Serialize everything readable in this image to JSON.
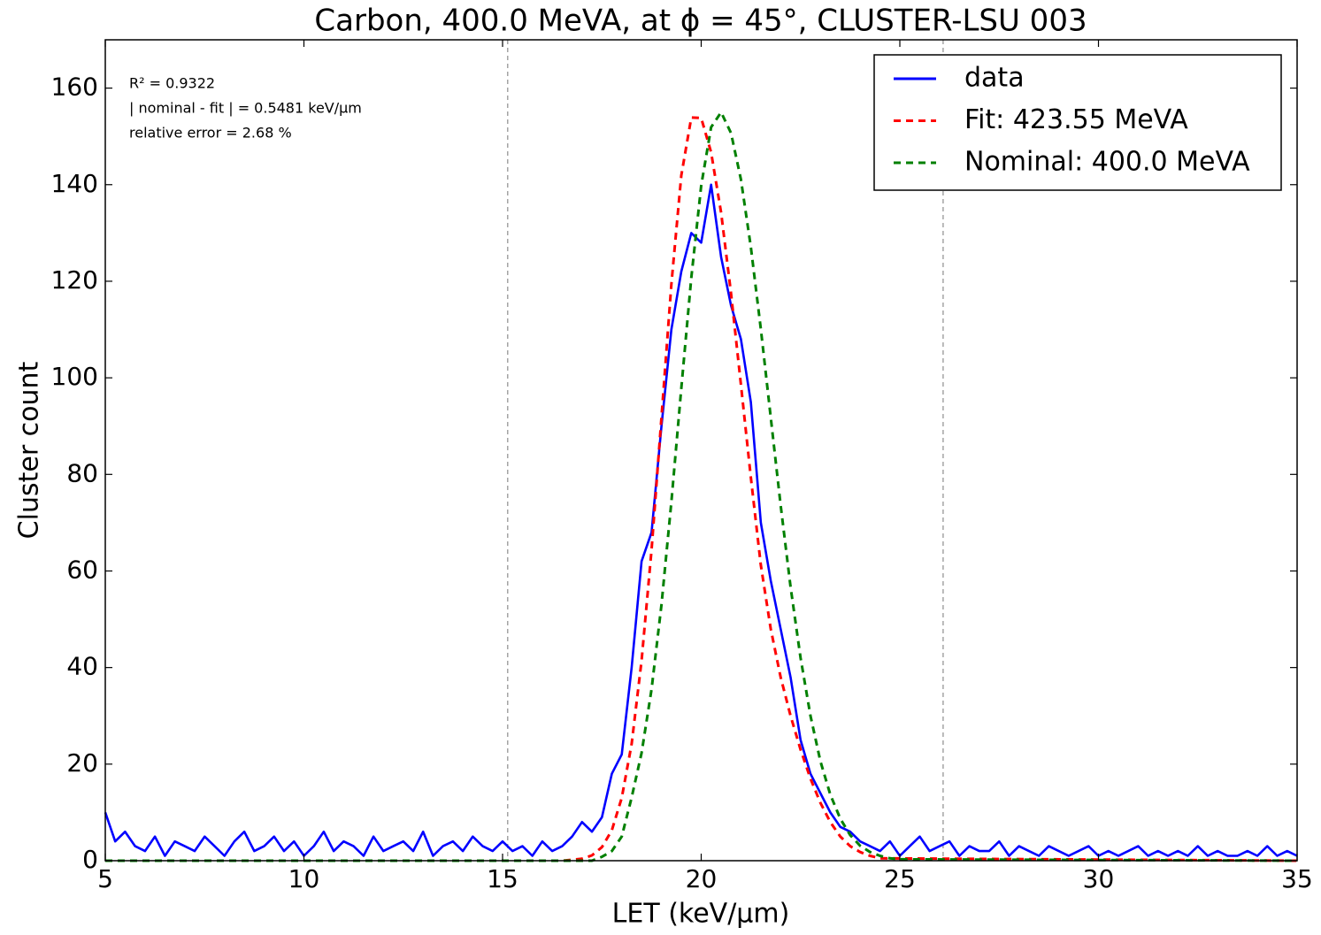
{
  "chart_data": {
    "type": "line",
    "title": "Carbon, 400.0 MeVA, at ϕ = 45°, CLUSTER-LSU 003",
    "x_label": "LET (keV/μm)",
    "y_label": "Cluster count",
    "annotations": [
      "R² = 0.9322",
      "| nominal - fit | = 0.5481 keV/μm",
      "relative error = 2.68 %"
    ],
    "xlim": [
      5,
      35
    ],
    "ylim": [
      0,
      170
    ],
    "xticks": [
      5,
      10,
      15,
      20,
      25,
      30,
      35
    ],
    "yticks": [
      0,
      20,
      40,
      60,
      80,
      100,
      120,
      140,
      160
    ],
    "vlines": [
      15.13,
      26.09
    ],
    "legend": "upper right",
    "series": [
      {
        "name": "data",
        "color": "#0000ff",
        "style": "solid",
        "x": [
          5,
          5.25,
          5.5,
          5.75,
          6,
          6.25,
          6.5,
          6.75,
          7,
          7.25,
          7.5,
          7.75,
          8,
          8.25,
          8.5,
          8.75,
          9,
          9.25,
          9.5,
          9.75,
          10,
          10.25,
          10.5,
          10.75,
          11,
          11.25,
          11.5,
          11.75,
          12,
          12.25,
          12.5,
          12.75,
          13,
          13.25,
          13.5,
          13.75,
          14,
          14.25,
          14.5,
          14.75,
          15,
          15.25,
          15.5,
          15.75,
          16,
          16.25,
          16.5,
          16.75,
          17,
          17.25,
          17.5,
          17.75,
          18,
          18.25,
          18.5,
          18.75,
          19,
          19.25,
          19.5,
          19.75,
          20,
          20.25,
          20.5,
          20.75,
          21,
          21.25,
          21.5,
          21.75,
          22,
          22.25,
          22.5,
          22.75,
          23,
          23.25,
          23.5,
          23.75,
          24,
          24.25,
          24.5,
          24.75,
          25,
          25.25,
          25.5,
          25.75,
          26,
          26.25,
          26.5,
          26.75,
          27,
          27.25,
          27.5,
          27.75,
          28,
          28.25,
          28.5,
          28.75,
          29,
          29.25,
          29.5,
          29.75,
          30,
          30.25,
          30.5,
          30.75,
          31,
          31.25,
          31.5,
          31.75,
          32,
          32.25,
          32.5,
          32.75,
          33,
          33.25,
          33.5,
          33.75,
          34,
          34.25,
          34.5,
          34.75,
          35
        ],
        "values": [
          10,
          4,
          6,
          3,
          2,
          5,
          1,
          4,
          3,
          2,
          5,
          3,
          1,
          4,
          6,
          2,
          3,
          5,
          2,
          4,
          1,
          3,
          6,
          2,
          4,
          3,
          1,
          5,
          2,
          3,
          4,
          2,
          6,
          1,
          3,
          4,
          2,
          5,
          3,
          2,
          4,
          2,
          3,
          1,
          4,
          2,
          3,
          5,
          8,
          6,
          9,
          18,
          22,
          40,
          62,
          68,
          90,
          110,
          122,
          130,
          128,
          140,
          125,
          115,
          108,
          95,
          70,
          58,
          48,
          38,
          25,
          18,
          14,
          10,
          7,
          6,
          4,
          3,
          2,
          4,
          1,
          3,
          5,
          2,
          3,
          4,
          1,
          3,
          2,
          2,
          4,
          1,
          3,
          2,
          1,
          3,
          2,
          1,
          2,
          3,
          1,
          2,
          1,
          2,
          3,
          1,
          2,
          1,
          2,
          1,
          3,
          1,
          2,
          1,
          1,
          2,
          1,
          3,
          1,
          2,
          1
        ]
      },
      {
        "name": "Fit: 423.55 MeVA",
        "color": "#ff0000",
        "style": "dashed",
        "x": [
          5,
          16.5,
          17,
          17.25,
          17.5,
          17.75,
          18,
          18.25,
          18.5,
          18.75,
          19,
          19.25,
          19.5,
          19.75,
          20,
          20.25,
          20.5,
          20.75,
          21,
          21.25,
          21.5,
          21.75,
          22,
          22.25,
          22.5,
          22.75,
          23,
          23.25,
          23.5,
          23.75,
          24,
          24.25,
          24.5,
          35
        ],
        "values": [
          0,
          0,
          0.4,
          1.1,
          2.8,
          6.3,
          13,
          24.2,
          41.4,
          64.4,
          91.8,
          119.4,
          141.9,
          153.9,
          153.8,
          146.7,
          134.2,
          117.5,
          98.6,
          79.4,
          61.2,
          48,
          38,
          30,
          23,
          17,
          12,
          8,
          5,
          3,
          1.8,
          1,
          0.5,
          0
        ]
      },
      {
        "name": "Nominal: 400.0 MeVA",
        "color": "#008000",
        "style": "dashed",
        "x": [
          5,
          17.25,
          17.5,
          17.75,
          18,
          18.25,
          18.5,
          18.75,
          19,
          19.25,
          19.5,
          19.75,
          20,
          20.25,
          20.5,
          20.75,
          21,
          21.25,
          21.5,
          21.75,
          22,
          22.25,
          22.5,
          22.75,
          23,
          23.25,
          23.5,
          23.75,
          24,
          24.25,
          24.5,
          24.75,
          25,
          35
        ],
        "values": [
          0,
          0,
          0.8,
          2,
          5,
          13.1,
          22.3,
          35.5,
          53,
          74.3,
          97.8,
          120.7,
          139.8,
          151.9,
          155,
          150.7,
          141.1,
          127.1,
          110.1,
          91.8,
          73.6,
          56.7,
          42,
          30,
          20.6,
          13.7,
          8.7,
          5.3,
          3.1,
          1.8,
          1,
          0.5,
          0.3,
          0
        ]
      }
    ]
  }
}
